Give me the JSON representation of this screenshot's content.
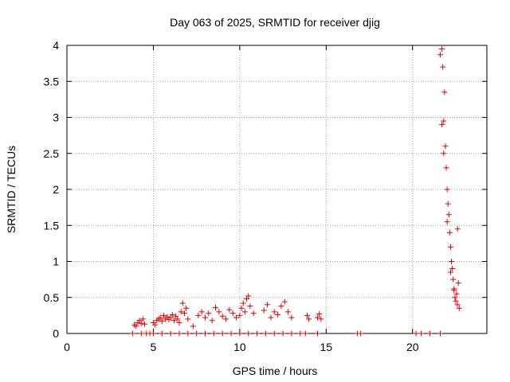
{
  "chart_data": {
    "type": "scatter",
    "title": "Day 063 of 2025, SRMTID for receiver djig",
    "xlabel": "GPS time / hours",
    "ylabel": "SRMTID / TECUs",
    "xlim": [
      0,
      24.3
    ],
    "ylim": [
      0,
      4
    ],
    "xticks": [
      0,
      5,
      10,
      15,
      20
    ],
    "yticks": [
      0,
      0.5,
      1,
      1.5,
      2,
      2.5,
      3,
      3.5,
      4
    ],
    "grid": true,
    "marker": "plus",
    "color": "#e00000",
    "series": [
      {
        "name": "SRMTID",
        "x": [
          3.9,
          4.0,
          4.1,
          4.2,
          4.3,
          4.4,
          4.5,
          5.0,
          5.1,
          5.2,
          5.3,
          5.4,
          5.5,
          5.6,
          5.7,
          5.8,
          5.9,
          6.0,
          6.1,
          6.2,
          6.3,
          6.4,
          6.5,
          6.6,
          6.7,
          6.8,
          6.9,
          7.0,
          7.3,
          7.6,
          7.8,
          8.0,
          8.2,
          8.4,
          8.6,
          8.8,
          9.0,
          9.2,
          9.4,
          9.6,
          9.8,
          10.0,
          10.1,
          10.2,
          10.3,
          10.4,
          10.5,
          10.6,
          10.8,
          11.4,
          11.6,
          11.8,
          12.0,
          12.2,
          12.4,
          12.6,
          12.8,
          13.0,
          13.9,
          14.0,
          14.5,
          14.6,
          14.7,
          21.6,
          21.7,
          21.75,
          21.8,
          21.85,
          21.9,
          21.95,
          22.0,
          22.05,
          22.1,
          22.15,
          22.2,
          22.25,
          22.3,
          22.35,
          22.4,
          22.45,
          22.5,
          22.55,
          22.6,
          22.65,
          22.7,
          21.7,
          21.8,
          22.0,
          22.2,
          22.4,
          22.6,
          3.8,
          4.3,
          4.6,
          4.8,
          5.0,
          5.5,
          6.0,
          6.5,
          7.0,
          7.5,
          8.0,
          8.5,
          9.0,
          9.5,
          10.0,
          10.5,
          11.0,
          11.5,
          12.0,
          12.5,
          13.0,
          13.5,
          13.8,
          14.5,
          16.8,
          17.0,
          20.2,
          20.5,
          21.0,
          21.6
        ],
        "y": [
          0.12,
          0.1,
          0.15,
          0.18,
          0.14,
          0.2,
          0.13,
          0.15,
          0.12,
          0.18,
          0.2,
          0.22,
          0.17,
          0.25,
          0.2,
          0.23,
          0.19,
          0.22,
          0.26,
          0.18,
          0.24,
          0.2,
          0.15,
          0.3,
          0.42,
          0.28,
          0.35,
          0.2,
          0.1,
          0.25,
          0.3,
          0.22,
          0.28,
          0.18,
          0.36,
          0.3,
          0.24,
          0.2,
          0.33,
          0.28,
          0.22,
          0.25,
          0.35,
          0.42,
          0.3,
          0.48,
          0.52,
          0.38,
          0.28,
          0.32,
          0.4,
          0.22,
          0.3,
          0.26,
          0.38,
          0.44,
          0.3,
          0.22,
          0.25,
          0.2,
          0.22,
          0.27,
          0.2,
          3.87,
          3.95,
          3.7,
          2.95,
          3.35,
          2.6,
          2.3,
          2.0,
          1.8,
          1.65,
          1.4,
          1.2,
          1.0,
          0.9,
          0.75,
          0.6,
          0.5,
          0.45,
          0.55,
          0.4,
          0.7,
          0.35,
          2.9,
          2.5,
          1.55,
          0.85,
          0.62,
          1.45,
          0,
          0,
          0,
          0,
          0,
          0,
          0,
          0,
          0,
          0,
          0,
          0,
          0,
          0,
          0,
          0,
          0,
          0,
          0,
          0,
          0,
          0,
          0,
          0,
          0,
          0,
          0,
          0,
          0,
          0
        ]
      }
    ]
  }
}
